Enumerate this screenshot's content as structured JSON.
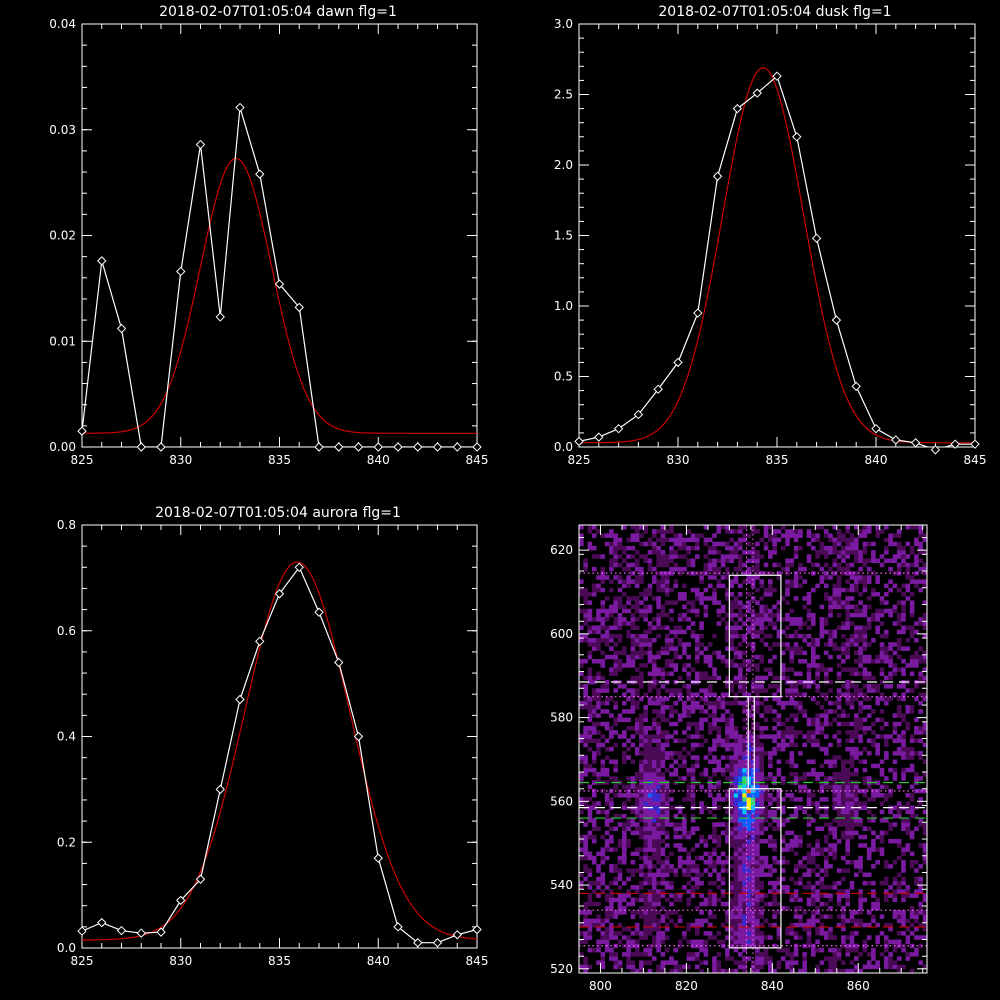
{
  "chart_data": [
    {
      "type": "line",
      "title": "2018-02-07T01:05:04 dawn flg=1",
      "xlim": [
        825,
        845
      ],
      "ylim": [
        0,
        0.04
      ],
      "x_ticks": [
        825,
        830,
        835,
        840,
        845
      ],
      "y_ticks": [
        0.0,
        0.01,
        0.02,
        0.03,
        0.04
      ],
      "y_tick_labels": [
        "0.00",
        "0.01",
        "0.02",
        "0.03",
        "0.04"
      ],
      "series": [
        {
          "style": "data",
          "color": "#ffffff",
          "x": [
            825,
            826,
            827,
            828,
            829,
            830,
            831,
            832,
            833,
            834,
            835,
            836,
            837,
            838,
            839,
            840,
            841,
            842,
            843,
            844,
            845
          ],
          "y": [
            0.0015,
            0.0176,
            0.0112,
            0.0,
            0.0,
            0.0166,
            0.0286,
            0.0123,
            0.0321,
            0.0258,
            0.0154,
            0.0132,
            0.0,
            0.0,
            0.0,
            0.0,
            0.0,
            0.0,
            0.0,
            0.0,
            0.0
          ]
        },
        {
          "style": "fit",
          "color": "#cc0000",
          "kind": "gaussian",
          "baseline": 0.0013,
          "amplitude": 0.026,
          "center": 832.8,
          "sigma": 1.8
        }
      ]
    },
    {
      "type": "line",
      "title": "2018-02-07T01:05:04 dusk flg=1",
      "xlim": [
        825,
        845
      ],
      "ylim": [
        0,
        3.0
      ],
      "x_ticks": [
        825,
        830,
        835,
        840,
        845
      ],
      "y_ticks": [
        0.0,
        0.5,
        1.0,
        1.5,
        2.0,
        2.5,
        3.0
      ],
      "y_tick_labels": [
        "0.0",
        "0.5",
        "1.0",
        "1.5",
        "2.0",
        "2.5",
        "3.0"
      ],
      "series": [
        {
          "style": "data",
          "color": "#ffffff",
          "x": [
            825,
            826,
            827,
            828,
            829,
            830,
            831,
            832,
            833,
            834,
            835,
            836,
            837,
            838,
            839,
            840,
            841,
            842,
            843,
            844,
            845
          ],
          "y": [
            0.04,
            0.07,
            0.13,
            0.23,
            0.41,
            0.6,
            0.95,
            1.92,
            2.4,
            2.51,
            2.63,
            2.2,
            1.48,
            0.9,
            0.43,
            0.13,
            0.05,
            0.03,
            -0.02,
            0.02,
            0.02
          ]
        },
        {
          "style": "fit",
          "color": "#cc0000",
          "kind": "gaussian",
          "baseline": 0.03,
          "amplitude": 2.66,
          "center": 834.3,
          "sigma": 2.05
        }
      ]
    },
    {
      "type": "line",
      "title": "2018-02-07T01:05:04 aurora flg=1",
      "xlim": [
        825,
        845
      ],
      "ylim": [
        0,
        0.8
      ],
      "x_ticks": [
        825,
        830,
        835,
        840,
        845
      ],
      "y_ticks": [
        0.0,
        0.2,
        0.4,
        0.6,
        0.8
      ],
      "y_tick_labels": [
        "0.0",
        "0.2",
        "0.4",
        "0.6",
        "0.8"
      ],
      "series": [
        {
          "style": "data",
          "color": "#ffffff",
          "x": [
            825,
            826,
            827,
            828,
            829,
            830,
            831,
            832,
            833,
            834,
            835,
            836,
            837,
            838,
            839,
            840,
            841,
            842,
            843,
            844,
            845
          ],
          "y": [
            0.032,
            0.048,
            0.033,
            0.028,
            0.03,
            0.09,
            0.13,
            0.3,
            0.47,
            0.58,
            0.67,
            0.72,
            0.635,
            0.54,
            0.4,
            0.17,
            0.04,
            0.01,
            0.01,
            0.025,
            0.035
          ]
        },
        {
          "style": "fit",
          "color": "#cc0000",
          "kind": "gaussian",
          "baseline": 0.015,
          "amplitude": 0.715,
          "center": 835.9,
          "sigma": 2.65
        }
      ]
    },
    {
      "type": "heatmap",
      "title": "",
      "xlim": [
        795,
        876
      ],
      "ylim": [
        519,
        626
      ],
      "x_ticks": [
        800,
        820,
        840,
        860
      ],
      "y_ticks": [
        520,
        540,
        560,
        580,
        600,
        620
      ],
      "colormap": [
        "#000000",
        "#4a0a55",
        "#7a1aa0",
        "#3a2ad0",
        "#0a60ff",
        "#00c8ff",
        "#30e070",
        "#ffee00",
        "#ff6600",
        "#cc0000"
      ],
      "emission_columns": [
        {
          "x": 812,
          "width": 4,
          "y_range": [
            525,
            575
          ],
          "peak_y": 560,
          "peak_level": 0.45
        },
        {
          "x": 834,
          "width": 4,
          "y_range": [
            525,
            575
          ],
          "peak_y": 561,
          "peak_level": 0.95
        },
        {
          "x": 857,
          "width": 4,
          "y_range": [
            525,
            575
          ],
          "peak_y": 560,
          "peak_level": 0.25
        }
      ],
      "boxes": [
        {
          "x": [
            830,
            842
          ],
          "y": [
            585,
            614
          ]
        },
        {
          "x": [
            830,
            842
          ],
          "y": [
            525,
            563
          ]
        }
      ],
      "hlines": [
        {
          "y": 588.5,
          "style": "dashed",
          "color": "#ffffff"
        },
        {
          "y": 558.5,
          "style": "dashed",
          "color": "#ffffff"
        },
        {
          "y": 564.5,
          "style": "dashed",
          "color": "#22cc22"
        },
        {
          "y": 556,
          "style": "dashed",
          "color": "#22cc22"
        },
        {
          "y": 538,
          "style": "dashed",
          "color": "#cc0000"
        },
        {
          "y": 530,
          "style": "dashed",
          "color": "#cc0000"
        },
        {
          "y": 614.5,
          "style": "dotted",
          "color": "#ff66ff"
        },
        {
          "y": 585,
          "style": "dotted",
          "color": "#ff66ff"
        },
        {
          "y": 562.5,
          "style": "dotted",
          "color": "#ff66ff"
        },
        {
          "y": 534,
          "style": "dotted",
          "color": "#ff66ff"
        },
        {
          "y": 525.5,
          "style": "dotted",
          "color": "#ff66ff"
        }
      ],
      "vlines": [
        {
          "x": 834,
          "style": "dotted",
          "color": "#ff66ff"
        },
        {
          "x": 835.5,
          "style": "dotted",
          "color": "#ff66ff"
        }
      ]
    }
  ]
}
